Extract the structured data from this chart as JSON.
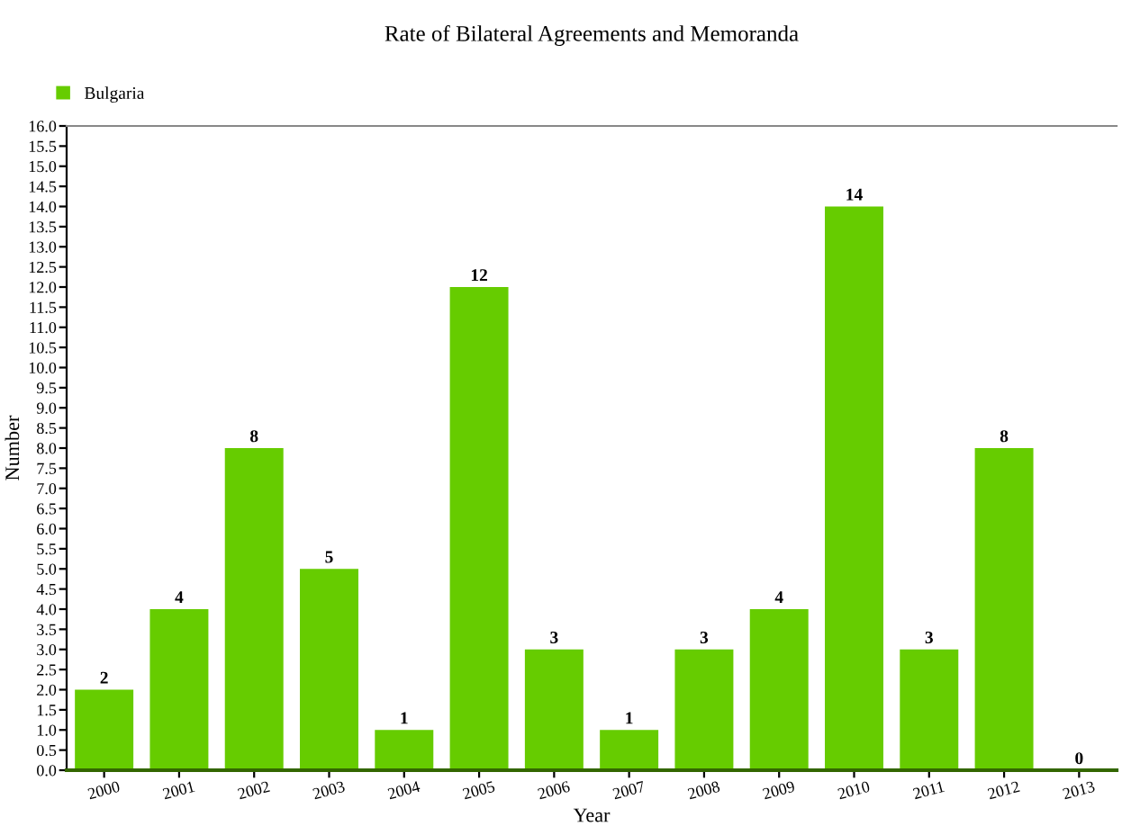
{
  "chart_data": {
    "type": "bar",
    "title": "Rate of Bilateral Agreements and Memoranda",
    "xlabel": "Year",
    "ylabel": "Number",
    "categories": [
      "2000",
      "2001",
      "2002",
      "2003",
      "2004",
      "2005",
      "2006",
      "2007",
      "2008",
      "2009",
      "2010",
      "2011",
      "2012",
      "2013"
    ],
    "series": [
      {
        "name": "Bulgaria",
        "color": "#66cc00",
        "values": [
          2,
          4,
          8,
          5,
          1,
          12,
          3,
          1,
          3,
          4,
          14,
          3,
          8,
          0
        ]
      }
    ],
    "data_labels": true,
    "legend": "top left",
    "grid": false,
    "ylim": [
      0,
      16
    ],
    "yticks": [
      {
        "value": 0,
        "label": "0.0"
      },
      {
        "value": 0.5,
        "label": "0.5"
      },
      {
        "value": 1,
        "label": "1.0"
      },
      {
        "value": 1.5,
        "label": "1.5"
      },
      {
        "value": 2,
        "label": "2.0"
      },
      {
        "value": 2.5,
        "label": "2.5"
      },
      {
        "value": 3,
        "label": "3.0"
      },
      {
        "value": 3.5,
        "label": "3.5"
      },
      {
        "value": 4,
        "label": "4.0"
      },
      {
        "value": 4.5,
        "label": "4.5"
      },
      {
        "value": 5,
        "label": "5.0"
      },
      {
        "value": 5.5,
        "label": "5.5"
      },
      {
        "value": 6,
        "label": "6.0"
      },
      {
        "value": 6.5,
        "label": "6.5"
      },
      {
        "value": 7,
        "label": "7.0"
      },
      {
        "value": 7.5,
        "label": "7.5"
      },
      {
        "value": 8,
        "label": "8.0"
      },
      {
        "value": 8.5,
        "label": "8.5"
      },
      {
        "value": 9,
        "label": "9.0"
      },
      {
        "value": 9.5,
        "label": "9.5"
      },
      {
        "value": 10,
        "label": "10.0"
      },
      {
        "value": 10.5,
        "label": "10.5"
      },
      {
        "value": 11,
        "label": "11.0"
      },
      {
        "value": 11.5,
        "label": "11.5"
      },
      {
        "value": 12,
        "label": "12.0"
      },
      {
        "value": 12.5,
        "label": "12.5"
      },
      {
        "value": 13,
        "label": "13.0"
      },
      {
        "value": 13.5,
        "label": "13.5"
      },
      {
        "value": 14,
        "label": "14.0"
      },
      {
        "value": 14.5,
        "label": "14.5"
      },
      {
        "value": 15,
        "label": "15.0"
      },
      {
        "value": 15.5,
        "label": "15.5"
      },
      {
        "value": 16,
        "label": "16.0"
      }
    ]
  }
}
